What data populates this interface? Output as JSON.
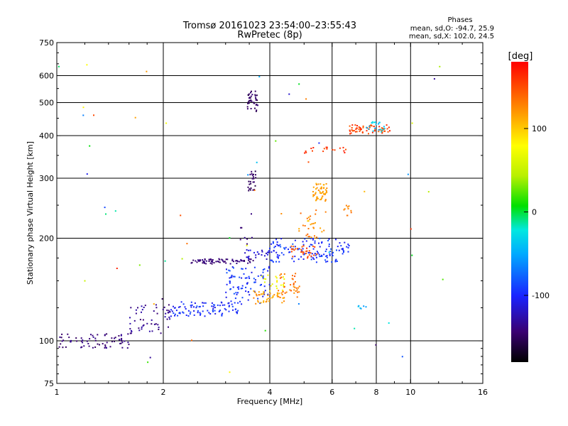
{
  "chart_data": {
    "type": "scatter",
    "title": "Tromsø 20161023 23:54:00–23:55:43",
    "subtitle": "RwPretec (8p)",
    "xlabel": "Frequency [MHz]",
    "ylabel": "Stationary phase Virtual Height [km]",
    "x_scale": "log",
    "y_scale": "log",
    "xlim": [
      1,
      16
    ],
    "ylim": [
      75,
      750
    ],
    "x_ticks": [
      1,
      2,
      4,
      6,
      8,
      10,
      16
    ],
    "x_grid": [
      2,
      4,
      6,
      8,
      10
    ],
    "y_ticks": [
      75,
      100,
      200,
      300,
      400,
      500,
      600,
      750
    ],
    "y_grid": [
      100,
      200,
      300,
      400,
      500,
      600
    ],
    "grid": true,
    "stats": {
      "heading": "Phases",
      "line1": "mean, sd,O: -94.7, 25.9",
      "line2": "mean, sd,X: 102.0, 24.5"
    },
    "colorbar": {
      "label": "[deg]",
      "min": -180,
      "max": 180,
      "ticks": [
        100,
        0,
        -100
      ],
      "tick_labels": [
        "100",
        "0",
        "-100"
      ]
    },
    "clusters": [
      {
        "f": [
          1.0,
          1.6
        ],
        "h": [
          95,
          105
        ],
        "phase": [
          -150,
          -130
        ],
        "n": 70
      },
      {
        "f": [
          1.6,
          2.1
        ],
        "h": [
          105,
          128
        ],
        "phase": [
          -145,
          -125
        ],
        "n": 55
      },
      {
        "f": [
          2.1,
          3.3
        ],
        "h": [
          118,
          130
        ],
        "phase": [
          -110,
          -85
        ],
        "n": 90
      },
      {
        "f": [
          3.0,
          4.0
        ],
        "h": [
          128,
          165
        ],
        "phase": [
          -110,
          -80
        ],
        "n": 90
      },
      {
        "f": [
          2.4,
          3.6
        ],
        "h": [
          168,
          174
        ],
        "phase": [
          -150,
          -135
        ],
        "n": 70
      },
      {
        "f": [
          3.4,
          4.0
        ],
        "h": [
          172,
          185
        ],
        "phase": [
          -125,
          -105
        ],
        "n": 25
      },
      {
        "f": [
          4.0,
          6.3
        ],
        "h": [
          170,
          200
        ],
        "phase": [
          -110,
          -80
        ],
        "n": 120
      },
      {
        "f": [
          6.2,
          6.7
        ],
        "h": [
          180,
          195
        ],
        "phase": [
          -110,
          -85
        ],
        "n": 15
      },
      {
        "f": [
          3.6,
          4.4
        ],
        "h": [
          128,
          140
        ],
        "phase": [
          100,
          135
        ],
        "n": 45
      },
      {
        "f": [
          4.2,
          4.9
        ],
        "h": [
          138,
          158
        ],
        "phase": [
          120,
          150
        ],
        "n": 35
      },
      {
        "f": [
          3.8,
          4.4
        ],
        "h": [
          140,
          158
        ],
        "phase": [
          60,
          90
        ],
        "n": 20
      },
      {
        "f": [
          4.6,
          5.5
        ],
        "h": [
          175,
          190
        ],
        "phase": [
          140,
          165
        ],
        "n": 30
      },
      {
        "f": [
          4.8,
          5.8
        ],
        "h": [
          200,
          240
        ],
        "phase": [
          100,
          140
        ],
        "n": 30
      },
      {
        "f": [
          5.3,
          5.8
        ],
        "h": [
          255,
          290
        ],
        "phase": [
          105,
          130
        ],
        "n": 50
      },
      {
        "f": [
          6.4,
          7.0
        ],
        "h": [
          230,
          250
        ],
        "phase": [
          110,
          140
        ],
        "n": 10
      },
      {
        "f": [
          6.7,
          8.8
        ],
        "h": [
          405,
          430
        ],
        "phase": [
          140,
          170
        ],
        "n": 60
      },
      {
        "f": [
          7.5,
          8.5
        ],
        "h": [
          410,
          440
        ],
        "phase": [
          -60,
          -20
        ],
        "n": 20
      },
      {
        "f": [
          5.0,
          6.6
        ],
        "h": [
          355,
          370
        ],
        "phase": [
          145,
          170
        ],
        "n": 18
      },
      {
        "f": [
          3.45,
          3.7
        ],
        "h": [
          470,
          540
        ],
        "phase": [
          -160,
          -140
        ],
        "n": 40
      },
      {
        "f": [
          3.45,
          3.65
        ],
        "h": [
          275,
          315
        ],
        "phase": [
          -160,
          -140
        ],
        "n": 25
      },
      {
        "f": [
          3.3,
          3.6
        ],
        "h": [
          190,
          240
        ],
        "phase": [
          -150,
          -130
        ],
        "n": 8
      },
      {
        "f": [
          7.1,
          7.5
        ],
        "h": [
          124,
          128
        ],
        "phase": [
          -60,
          -30
        ],
        "n": 6
      },
      {
        "f": [
          1.0,
          13.0
        ],
        "h": [
          80,
          650
        ],
        "phase": [
          -170,
          170
        ],
        "n": 60
      }
    ]
  }
}
